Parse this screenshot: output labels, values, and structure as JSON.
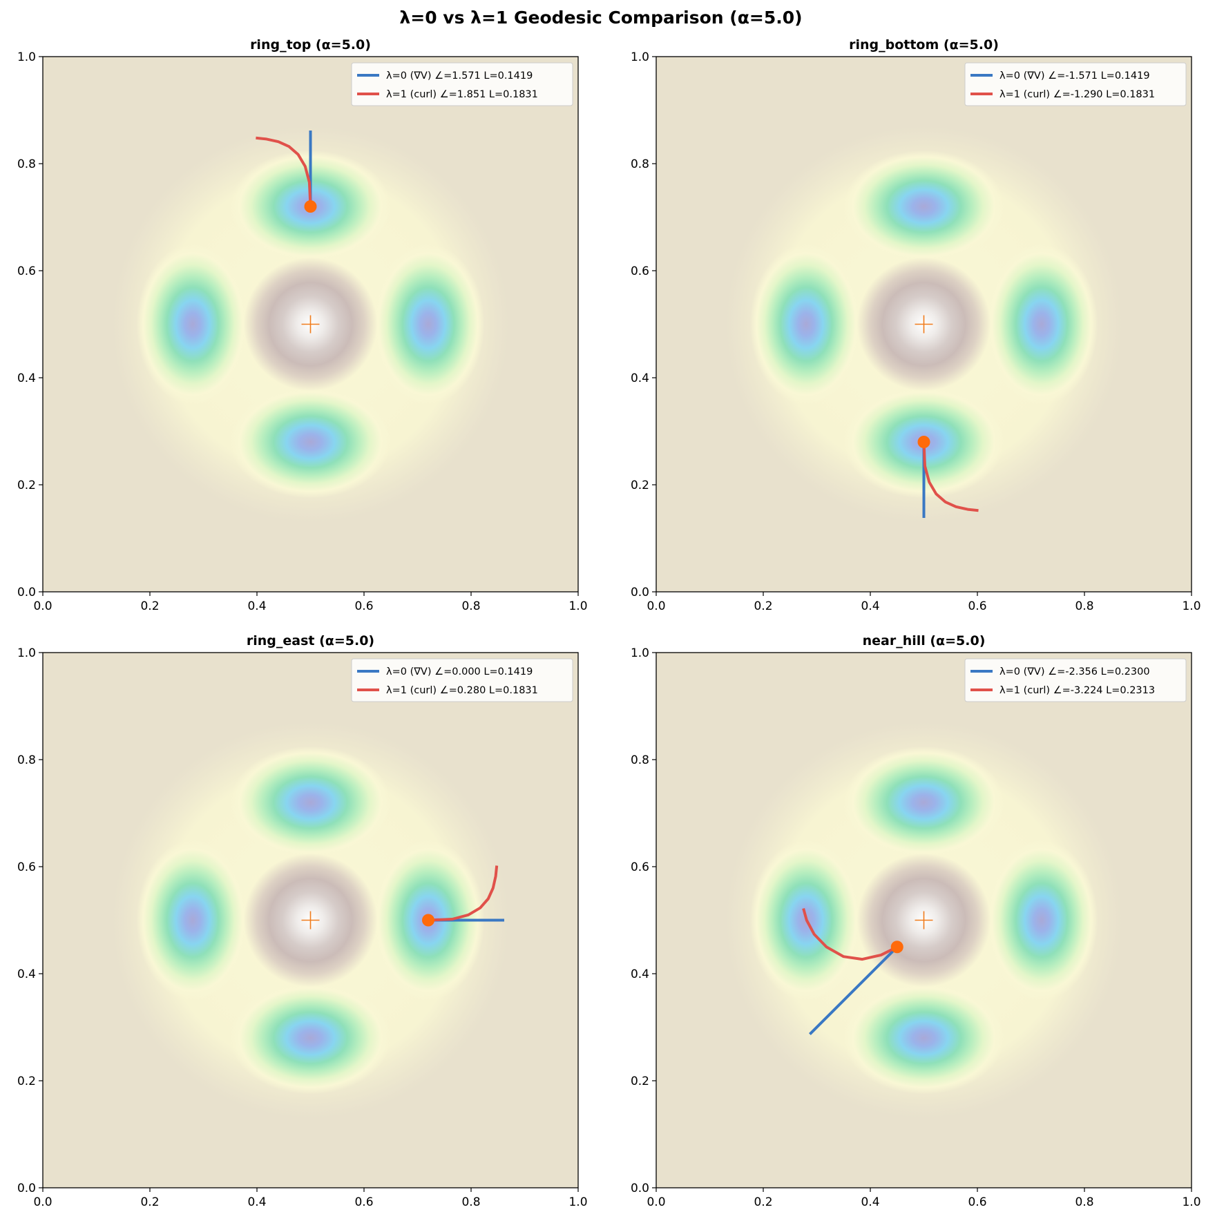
{
  "figure_title": "λ=0 vs λ=1 Geodesic Comparison (α=5.0)",
  "colors": {
    "background": "#e8e1cd",
    "lambda0": "#3a78c3",
    "lambda1": "#e0514a",
    "start_marker": "#ff6a0a",
    "center_marker": "#f07c1c"
  },
  "chart_data": [
    {
      "type": "contour",
      "title": "ring_top (α=5.0)",
      "xlim": [
        0,
        1
      ],
      "ylim": [
        0,
        1
      ],
      "xticks": [
        "0.0",
        "0.2",
        "0.4",
        "0.6",
        "0.8",
        "1.0"
      ],
      "yticks": [
        "0.0",
        "0.2",
        "0.4",
        "0.6",
        "0.8",
        "1.0"
      ],
      "legend_position": "upper-right",
      "center": [
        0.5,
        0.5
      ],
      "start": [
        0.5,
        0.72
      ],
      "series": [
        {
          "name": "λ=0 (∇V)",
          "legend": "λ=0 (∇V)  ∠=1.571  L=0.1419",
          "angle": 1.571,
          "length": 0.1419,
          "x": [
            0.5,
            0.5
          ],
          "y": [
            0.72,
            0.862
          ]
        },
        {
          "name": "λ=1 (curl)",
          "legend": "λ=1 (curl)  ∠=1.851  L=0.1831",
          "angle": 1.851,
          "length": 0.1831,
          "x": [
            0.5,
            0.498,
            0.49,
            0.477,
            0.46,
            0.44,
            0.418,
            0.398
          ],
          "y": [
            0.72,
            0.765,
            0.795,
            0.817,
            0.832,
            0.841,
            0.846,
            0.848
          ]
        }
      ]
    },
    {
      "type": "contour",
      "title": "ring_bottom (α=5.0)",
      "xlim": [
        0,
        1
      ],
      "ylim": [
        0,
        1
      ],
      "xticks": [
        "0.0",
        "0.2",
        "0.4",
        "0.6",
        "0.8",
        "1.0"
      ],
      "yticks": [
        "0.0",
        "0.2",
        "0.4",
        "0.6",
        "0.8",
        "1.0"
      ],
      "legend_position": "upper-right",
      "center": [
        0.5,
        0.5
      ],
      "start": [
        0.5,
        0.28
      ],
      "series": [
        {
          "name": "λ=0 (∇V)",
          "legend": "λ=0 (∇V)  ∠=-1.571  L=0.1419",
          "angle": -1.571,
          "length": 0.1419,
          "x": [
            0.5,
            0.5
          ],
          "y": [
            0.28,
            0.138
          ]
        },
        {
          "name": "λ=1 (curl)",
          "legend": "λ=1 (curl)  ∠=-1.290  L=0.1831",
          "angle": -1.29,
          "length": 0.1831,
          "x": [
            0.5,
            0.502,
            0.51,
            0.523,
            0.54,
            0.56,
            0.582,
            0.602
          ],
          "y": [
            0.28,
            0.235,
            0.205,
            0.183,
            0.168,
            0.159,
            0.154,
            0.152
          ]
        }
      ]
    },
    {
      "type": "contour",
      "title": "ring_east (α=5.0)",
      "xlim": [
        0,
        1
      ],
      "ylim": [
        0,
        1
      ],
      "xticks": [
        "0.0",
        "0.2",
        "0.4",
        "0.6",
        "0.8",
        "1.0"
      ],
      "yticks": [
        "0.0",
        "0.2",
        "0.4",
        "0.6",
        "0.8",
        "1.0"
      ],
      "legend_position": "upper-right",
      "center": [
        0.5,
        0.5
      ],
      "start": [
        0.72,
        0.5
      ],
      "series": [
        {
          "name": "λ=0 (∇V)",
          "legend": "λ=0 (∇V)  ∠=0.000  L=0.1419",
          "angle": 0.0,
          "length": 0.1419,
          "x": [
            0.72,
            0.862
          ],
          "y": [
            0.5,
            0.5
          ]
        },
        {
          "name": "λ=1 (curl)",
          "legend": "λ=1 (curl)  ∠=0.280  L=0.1831",
          "angle": 0.28,
          "length": 0.1831,
          "x": [
            0.72,
            0.765,
            0.795,
            0.817,
            0.832,
            0.841,
            0.846,
            0.848
          ],
          "y": [
            0.5,
            0.502,
            0.51,
            0.523,
            0.54,
            0.56,
            0.582,
            0.602
          ]
        }
      ]
    },
    {
      "type": "contour",
      "title": "near_hill (α=5.0)",
      "xlim": [
        0,
        1
      ],
      "ylim": [
        0,
        1
      ],
      "xticks": [
        "0.0",
        "0.2",
        "0.4",
        "0.6",
        "0.8",
        "1.0"
      ],
      "yticks": [
        "0.0",
        "0.2",
        "0.4",
        "0.6",
        "0.8",
        "1.0"
      ],
      "legend_position": "upper-right",
      "center": [
        0.5,
        0.5
      ],
      "start": [
        0.45,
        0.45
      ],
      "series": [
        {
          "name": "λ=0 (∇V)",
          "legend": "λ=0 (∇V)  ∠=-2.356  L=0.2300",
          "angle": -2.356,
          "length": 0.23,
          "x": [
            0.45,
            0.287
          ],
          "y": [
            0.45,
            0.287
          ]
        },
        {
          "name": "λ=1 (curl)",
          "legend": "λ=1 (curl)  ∠=-3.224  L=0.2313",
          "angle": -3.224,
          "length": 0.2313,
          "x": [
            0.45,
            0.42,
            0.385,
            0.35,
            0.318,
            0.295,
            0.281,
            0.275
          ],
          "y": [
            0.45,
            0.435,
            0.427,
            0.432,
            0.45,
            0.474,
            0.5,
            0.522
          ]
        }
      ]
    }
  ]
}
